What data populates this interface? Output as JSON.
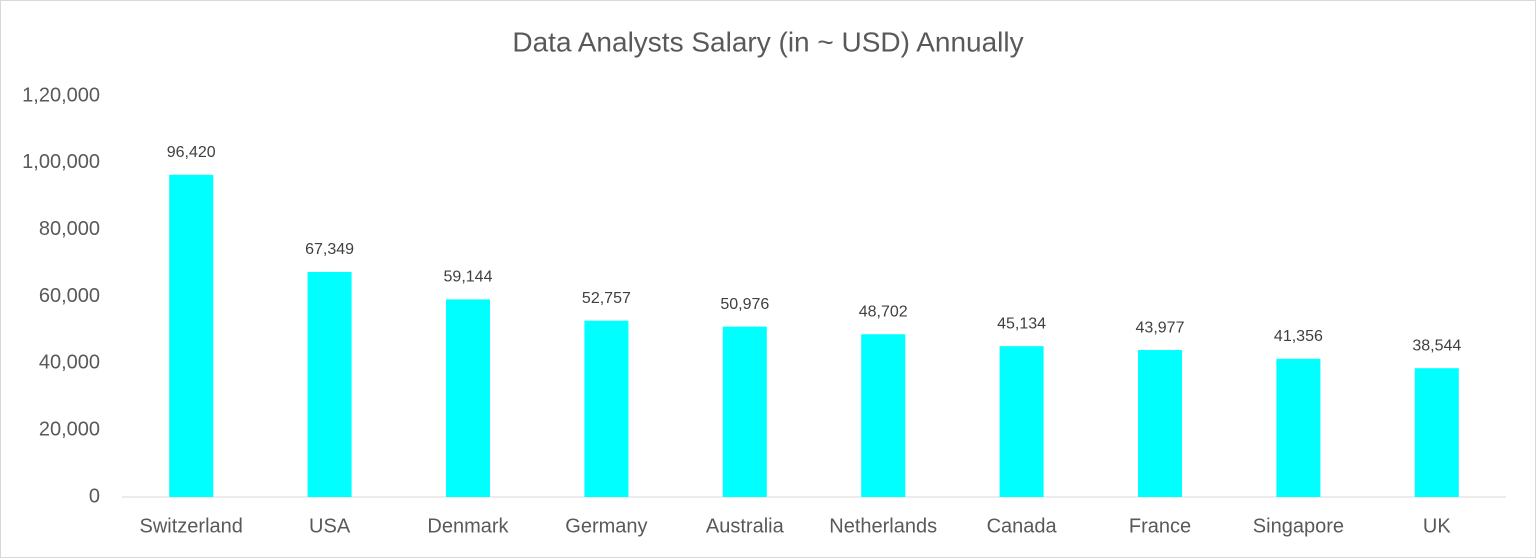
{
  "chart_data": {
    "type": "bar",
    "title": "Data Analysts Salary (in ~ USD) Annually",
    "categories": [
      "Switzerland",
      "USA",
      "Denmark",
      "Germany",
      "Australia",
      "Netherlands",
      "Canada",
      "France",
      "Singapore",
      "UK"
    ],
    "values": [
      96420,
      67349,
      59144,
      52757,
      50976,
      48702,
      45134,
      43977,
      41356,
      38544
    ],
    "value_labels": [
      "96,420",
      "67,349",
      "59,144",
      "52,757",
      "50,976",
      "48,702",
      "45,134",
      "43,977",
      "41,356",
      "38,544"
    ],
    "color": "#00FFFF",
    "ylim": [
      0,
      120000
    ],
    "yticks": [
      0,
      {
        "value": 20000,
        "label": "20,000"
      },
      {
        "value": 40000,
        "label": "40,000"
      },
      {
        "value": 60000,
        "label": "60,000"
      },
      {
        "value": 80000,
        "label": "80,000"
      },
      {
        "value": 100000,
        "label": "1,00,000"
      },
      {
        "value": 120000,
        "label": "1,20,000"
      }
    ],
    "grid": false
  }
}
